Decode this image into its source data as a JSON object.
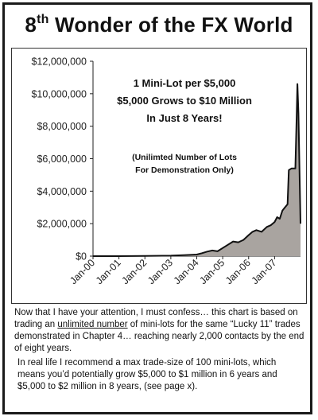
{
  "page": {
    "title_ordinal": "8",
    "title_ordinal_suffix": "th",
    "title_rest": "Wonder of the FX World"
  },
  "chart_data": {
    "type": "area",
    "x_tick_labels": [
      "Jan-00",
      "Jan-01",
      "Jan-02",
      "Jan-03",
      "Jan-04",
      "Jan-05",
      "Jan-06",
      "Jan-07"
    ],
    "y_tick_labels": [
      "$0",
      "$2,000,000",
      "$4,000,000",
      "$6,000,000",
      "$8,000,000",
      "$10,000,000",
      "$12,000,000"
    ],
    "ylim": [
      0,
      12000000
    ],
    "xlim": [
      2000.0,
      2008.0
    ],
    "grid": false,
    "fill_color": "#a9a4a0",
    "line_color": "#111111",
    "series": [
      {
        "x": [
          2000.0,
          2001.0,
          2002.0,
          2003.0,
          2003.5,
          2004.0,
          2004.2,
          2004.4,
          2004.6,
          2004.8,
          2005.0,
          2005.2,
          2005.4,
          2005.6,
          2005.8,
          2006.0,
          2006.15,
          2006.3,
          2006.5,
          2006.7,
          2006.85,
          2007.0,
          2007.1,
          2007.2,
          2007.3,
          2007.4,
          2007.5,
          2007.55,
          2007.65,
          2007.75,
          2007.8,
          2007.85,
          2007.88,
          2007.92,
          2008.0
        ],
        "values": [
          0,
          0,
          10000,
          30000,
          60000,
          100000,
          180000,
          280000,
          350000,
          300000,
          500000,
          700000,
          900000,
          850000,
          1000000,
          1300000,
          1500000,
          1600000,
          1500000,
          1800000,
          1900000,
          2100000,
          2400000,
          2300000,
          2800000,
          3000000,
          3200000,
          5300000,
          5400000,
          5400000,
          5400000,
          8500000,
          10600000,
          8800000,
          2000000
        ]
      }
    ],
    "annotation_lines": [
      "1 Mini-Lot per $5,000",
      "$5,000 Grows to $10 Million",
      "In Just 8 Years!"
    ],
    "annotation_note_lines": [
      "(Unilimted Number of Lots",
      "For Demonstration Only)"
    ]
  },
  "text": {
    "p1_before": "Now that I have your attention, I must confess… this chart is based on trading an ",
    "p1_underlined": "unlimited number",
    "p1_after": " of mini-lots for the same “Lucky 11” trades demonstrated in Chapter 4… reaching nearly 2,000 contacts by the end of eight years.",
    "p2": "In real life I recommend a max trade-size of 100 mini-lots, which means you’d potentially grow $5,000 to $1 million in 6 years and $5,000 to $2 million in 8 years, (see page x)."
  }
}
